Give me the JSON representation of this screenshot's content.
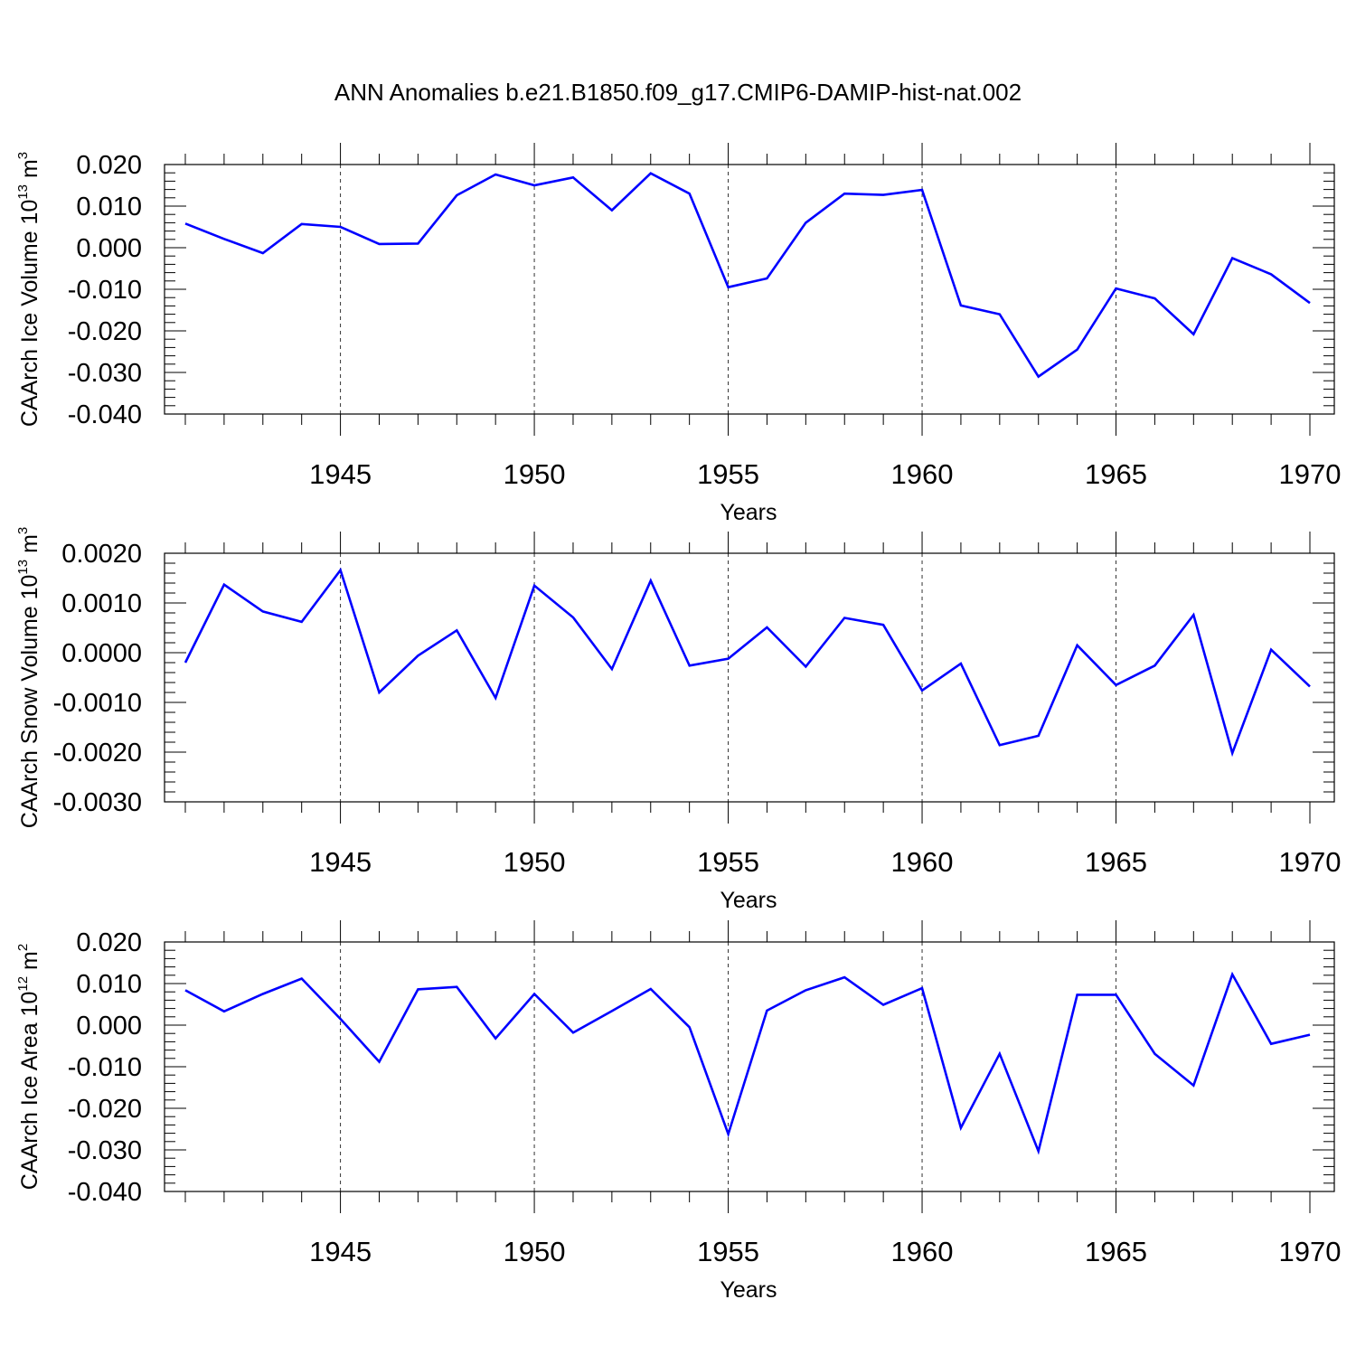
{
  "title": "ANN Anomalies b.e21.B1850.f09_g17.CMIP6-DAMIP-hist-nat.002",
  "colors": {
    "line": "#0000ff",
    "axis": "#000000",
    "grid": "#000000"
  },
  "chart_data": [
    {
      "type": "line",
      "ylabel": {
        "text": "CAArch Ice Volume 10",
        "exp": "13",
        "unit": " m",
        "unit_exp": "3"
      },
      "xlabel": "Years",
      "xlim": [
        1941,
        1970
      ],
      "ylim": [
        -0.04,
        0.02
      ],
      "yticks": [
        0.02,
        0.01,
        0.0,
        -0.01,
        -0.02,
        -0.03,
        -0.04
      ],
      "ytick_labels": [
        "0.020",
        "0.010",
        "0.000",
        "-0.010",
        "-0.020",
        "-0.030",
        "-0.040"
      ],
      "xticks": [
        1945,
        1950,
        1955,
        1960,
        1965,
        1970
      ],
      "xtick_labels": [
        "1945",
        "1950",
        "1955",
        "1960",
        "1965",
        "1970"
      ],
      "grid": "dashed vertical at major years",
      "x": [
        1941,
        1942,
        1943,
        1944,
        1945,
        1946,
        1947,
        1948,
        1949,
        1950,
        1951,
        1952,
        1953,
        1954,
        1955,
        1956,
        1957,
        1958,
        1959,
        1960,
        1961,
        1962,
        1963,
        1964,
        1965,
        1966,
        1967,
        1968,
        1969,
        1970
      ],
      "values": [
        0.0058,
        0.0021,
        -0.0013,
        0.0057,
        0.005,
        0.0009,
        0.001,
        0.0126,
        0.0176,
        0.015,
        0.0169,
        0.009,
        0.0179,
        0.013,
        -0.0095,
        -0.0074,
        0.006,
        0.013,
        0.0127,
        0.0139,
        -0.0139,
        -0.016,
        -0.031,
        -0.0245,
        -0.0098,
        -0.0122,
        -0.0208,
        -0.0025,
        -0.0064,
        -0.0133
      ]
    },
    {
      "type": "line",
      "ylabel": {
        "text": "CAArch Snow Volume 10",
        "exp": "13",
        "unit": " m",
        "unit_exp": "3"
      },
      "xlabel": "Years",
      "xlim": [
        1941,
        1970
      ],
      "ylim": [
        -0.003,
        0.002
      ],
      "yticks": [
        0.002,
        0.001,
        0.0,
        -0.001,
        -0.002,
        -0.003
      ],
      "ytick_labels": [
        "0.0020",
        "0.0010",
        "0.0000",
        "-0.0010",
        "-0.0020",
        "-0.0030"
      ],
      "xticks": [
        1945,
        1950,
        1955,
        1960,
        1965,
        1970
      ],
      "xtick_labels": [
        "1945",
        "1950",
        "1955",
        "1960",
        "1965",
        "1970"
      ],
      "grid": "dashed vertical at major years",
      "x": [
        1941,
        1942,
        1943,
        1944,
        1945,
        1946,
        1947,
        1948,
        1949,
        1950,
        1951,
        1952,
        1953,
        1954,
        1955,
        1956,
        1957,
        1958,
        1959,
        1960,
        1961,
        1962,
        1963,
        1964,
        1965,
        1966,
        1967,
        1968,
        1969,
        1970
      ],
      "values": [
        -0.0002,
        0.00137,
        0.00083,
        0.00062,
        0.00166,
        -0.0008,
        -6e-05,
        0.00045,
        -0.00091,
        0.00135,
        0.00071,
        -0.00033,
        0.00145,
        -0.00026,
        -0.00012,
        0.00051,
        -0.00028,
        0.0007,
        0.00056,
        -0.00076,
        -0.00022,
        -0.00186,
        -0.00167,
        0.00015,
        -0.00065,
        -0.00026,
        0.00076,
        -0.00202,
        6e-05,
        -0.00068
      ]
    },
    {
      "type": "line",
      "ylabel": {
        "text": "CAArch Ice Area 10",
        "exp": "12",
        "unit": " m",
        "unit_exp": "2"
      },
      "xlabel": "Years",
      "xlim": [
        1941,
        1970
      ],
      "ylim": [
        -0.04,
        0.02
      ],
      "yticks": [
        0.02,
        0.01,
        0.0,
        -0.01,
        -0.02,
        -0.03,
        -0.04
      ],
      "ytick_labels": [
        "0.020",
        "0.010",
        "0.000",
        "-0.010",
        "-0.020",
        "-0.030",
        "-0.040"
      ],
      "xticks": [
        1945,
        1950,
        1955,
        1960,
        1965,
        1970
      ],
      "xtick_labels": [
        "1945",
        "1950",
        "1955",
        "1960",
        "1965",
        "1970"
      ],
      "grid": "dashed vertical at major years",
      "x": [
        1941,
        1942,
        1943,
        1944,
        1945,
        1946,
        1947,
        1948,
        1949,
        1950,
        1951,
        1952,
        1953,
        1954,
        1955,
        1956,
        1957,
        1958,
        1959,
        1960,
        1961,
        1962,
        1963,
        1964,
        1965,
        1966,
        1967,
        1968,
        1969,
        1970
      ],
      "values": [
        0.0084,
        0.0033,
        0.0075,
        0.0112,
        0.0015,
        -0.0088,
        0.0086,
        0.0092,
        -0.0032,
        0.0075,
        -0.0018,
        0.0034,
        0.0087,
        -0.0005,
        -0.0262,
        0.0035,
        0.0084,
        0.0115,
        0.0049,
        0.0089,
        -0.0247,
        -0.0069,
        -0.0303,
        0.0073,
        0.0073,
        -0.0069,
        -0.0145,
        0.0122,
        -0.0045,
        -0.0023
      ]
    }
  ]
}
